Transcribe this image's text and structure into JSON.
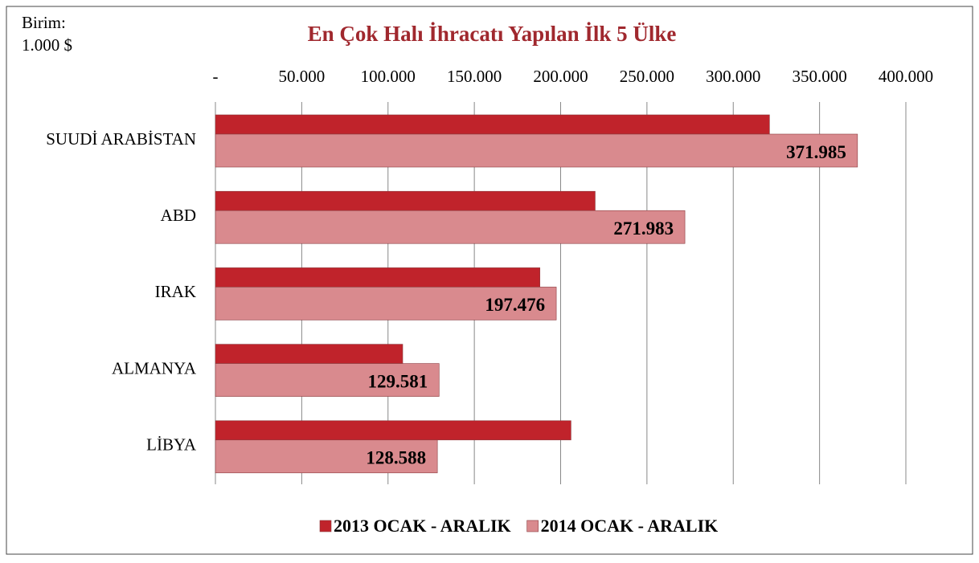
{
  "chart_data": {
    "type": "barh",
    "title": "En Çok Halı İhracatı Yapılan İlk 5 Ülke",
    "annotations": [
      "Birim:",
      "1.000 $"
    ],
    "categories": [
      "SUUDİ ARABİSTAN",
      "ABD",
      "IRAK",
      "ALMANYA",
      "LİBYA"
    ],
    "series": [
      {
        "name": "2013 OCAK - ARALIK",
        "color": "#c0232b",
        "values": [
          321000,
          220000,
          188000,
          108500,
          206000
        ]
      },
      {
        "name": "2014 OCAK - ARALIK",
        "color": "#d98a8e",
        "values": [
          371985,
          271983,
          197476,
          129581,
          128588
        ],
        "value_labels": [
          "371.985",
          "271.983",
          "197.476",
          "129.581",
          "128.588"
        ]
      }
    ],
    "xlim": [
      0,
      400000
    ],
    "xticks": [
      {
        "value": 0,
        "label": "-"
      },
      {
        "value": 50000,
        "label": "50.000"
      },
      {
        "value": 100000,
        "label": "100.000"
      },
      {
        "value": 150000,
        "label": "150.000"
      },
      {
        "value": 200000,
        "label": "200.000"
      },
      {
        "value": 250000,
        "label": "250.000"
      },
      {
        "value": 300000,
        "label": "300.000"
      },
      {
        "value": 350000,
        "label": "350.000"
      },
      {
        "value": 400000,
        "label": "400.000"
      }
    ],
    "grid": true,
    "legend": "bottom"
  }
}
